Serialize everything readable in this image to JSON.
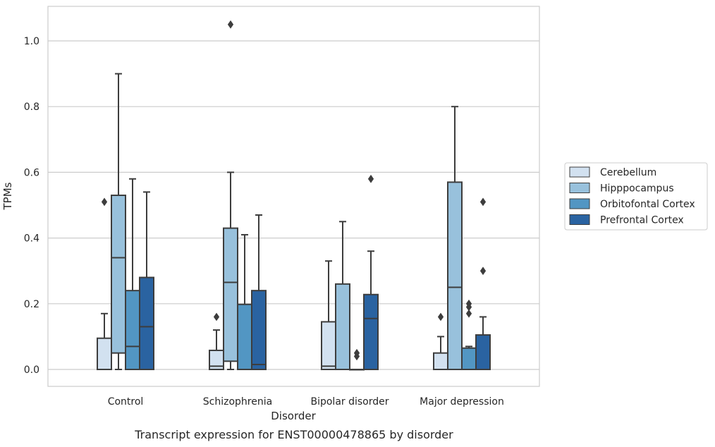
{
  "caption": "Transcript expression for ENST00000478865 by disorder",
  "chart_data": {
    "type": "box",
    "title": "",
    "xlabel": "Disorder",
    "ylabel": "TPMs",
    "ylim": [
      -0.05,
      1.1
    ],
    "yticks": [
      "0.0",
      "0.2",
      "0.4",
      "0.6",
      "0.8",
      "1.0"
    ],
    "grid": "horizontal",
    "legend_position": "right",
    "categories": [
      "Control",
      "Schizophrenia",
      "Bipolar disorder",
      "Major depression"
    ],
    "series": [
      {
        "name": "Cerebellum",
        "color": "#d2e1f0",
        "boxes": [
          {
            "whislo": 0.0,
            "q1": 0.0,
            "med": 0.0,
            "q3": 0.095,
            "whishi": 0.17,
            "fliers": [
              0.51
            ]
          },
          {
            "whislo": 0.0,
            "q1": 0.0,
            "med": 0.01,
            "q3": 0.058,
            "whishi": 0.12,
            "fliers": [
              0.16
            ]
          },
          {
            "whislo": 0.0,
            "q1": 0.0,
            "med": 0.01,
            "q3": 0.145,
            "whishi": 0.33,
            "fliers": []
          },
          {
            "whislo": 0.0,
            "q1": 0.0,
            "med": 0.0,
            "q3": 0.05,
            "whishi": 0.1,
            "fliers": [
              0.16
            ]
          }
        ]
      },
      {
        "name": "Hipppocampus",
        "color": "#98c1dc",
        "boxes": [
          {
            "whislo": 0.0,
            "q1": 0.05,
            "med": 0.34,
            "q3": 0.53,
            "whishi": 0.9,
            "fliers": []
          },
          {
            "whislo": 0.0,
            "q1": 0.025,
            "med": 0.265,
            "q3": 0.43,
            "whishi": 0.6,
            "fliers": [
              1.05
            ]
          },
          {
            "whislo": 0.0,
            "q1": 0.0,
            "med": 0.0,
            "q3": 0.26,
            "whishi": 0.45,
            "fliers": []
          },
          {
            "whislo": 0.0,
            "q1": 0.0,
            "med": 0.25,
            "q3": 0.57,
            "whishi": 0.8,
            "fliers": []
          }
        ]
      },
      {
        "name": "Orbitofontal Cortex",
        "color": "#5296c3",
        "boxes": [
          {
            "whislo": 0.0,
            "q1": 0.0,
            "med": 0.07,
            "q3": 0.24,
            "whishi": 0.58,
            "fliers": []
          },
          {
            "whislo": 0.0,
            "q1": 0.0,
            "med": 0.0,
            "q3": 0.198,
            "whishi": 0.41,
            "fliers": []
          },
          {
            "whislo": 0.0,
            "q1": 0.0,
            "med": 0.0,
            "q3": 0.0,
            "whishi": 0.0,
            "fliers": [
              0.04,
              0.05
            ]
          },
          {
            "whislo": 0.0,
            "q1": 0.0,
            "med": 0.0,
            "q3": 0.065,
            "whishi": 0.07,
            "fliers": [
              0.17,
              0.19,
              0.2
            ]
          }
        ]
      },
      {
        "name": "Prefrontal Cortex",
        "color": "#2a63a1",
        "boxes": [
          {
            "whislo": 0.0,
            "q1": 0.0,
            "med": 0.13,
            "q3": 0.28,
            "whishi": 0.54,
            "fliers": []
          },
          {
            "whislo": 0.0,
            "q1": 0.0,
            "med": 0.015,
            "q3": 0.24,
            "whishi": 0.47,
            "fliers": []
          },
          {
            "whislo": 0.0,
            "q1": 0.0,
            "med": 0.155,
            "q3": 0.228,
            "whishi": 0.36,
            "fliers": [
              0.58
            ]
          },
          {
            "whislo": 0.0,
            "q1": 0.0,
            "med": 0.0,
            "q3": 0.105,
            "whishi": 0.16,
            "fliers": [
              0.3,
              0.51
            ]
          }
        ]
      }
    ]
  }
}
